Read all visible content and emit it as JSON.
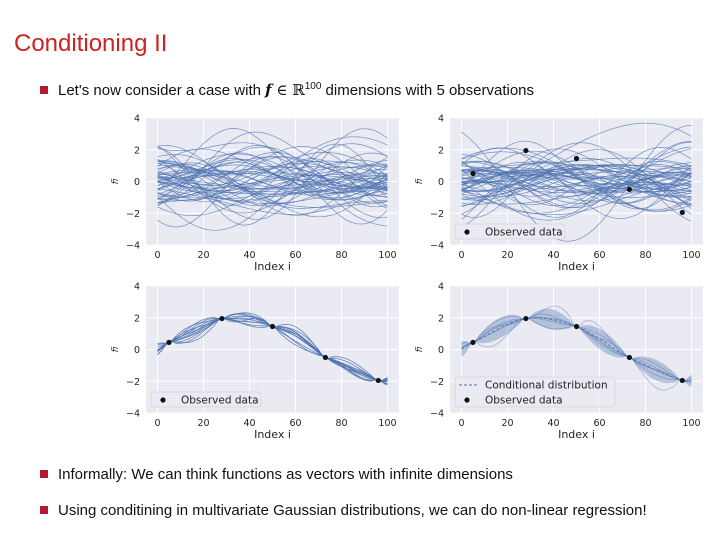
{
  "slide": {
    "title": "Conditioning II",
    "bullet1": {
      "pre": "Let's now consider a case with ",
      "f": "f",
      "in": " ∈ ℝ",
      "sup": "100",
      "post": " dimensions with 5 observations"
    },
    "bullet2": "Informally: We can think functions as vectors with infinite dimensions",
    "bullet3": "Using conditining in multivariate Gaussian distributions, we can do non-linear regression!"
  },
  "colors": {
    "title": "#cc2222",
    "bullet": "#b01c2e",
    "panel_bg": "#eaeaf2",
    "line": "#4c72b0",
    "point": "#111111"
  },
  "chart_data": [
    {
      "type": "line",
      "panel": "top-left",
      "title": "",
      "xlabel": "Index i",
      "ylabel": "f_i",
      "xlim": [
        -5,
        105
      ],
      "ylim": [
        -4,
        4
      ],
      "xticks": [
        0,
        20,
        40,
        60,
        80,
        100
      ],
      "yticks": [
        -4,
        -2,
        0,
        2,
        4
      ],
      "samples": 60,
      "observations": [],
      "legend": null,
      "grid": true
    },
    {
      "type": "scatter",
      "panel": "top-right",
      "title": "",
      "xlabel": "Index i",
      "ylabel": "f_i",
      "xlim": [
        -5,
        105
      ],
      "ylim": [
        -4,
        4
      ],
      "xticks": [
        0,
        20,
        40,
        60,
        80,
        100
      ],
      "yticks": [
        -4,
        -2,
        0,
        2,
        4
      ],
      "samples": 60,
      "observations": [
        {
          "x": 5,
          "y": 0.5
        },
        {
          "x": 28,
          "y": 1.95
        },
        {
          "x": 50,
          "y": 1.45
        },
        {
          "x": 73,
          "y": -0.5
        },
        {
          "x": 96,
          "y": -1.95
        }
      ],
      "legend": {
        "position": "lower-left",
        "entries": [
          "Observed data"
        ]
      },
      "grid": true
    },
    {
      "type": "line",
      "panel": "bottom-left",
      "title": "",
      "xlabel": "Index i",
      "ylabel": "f_i",
      "xlim": [
        -5,
        105
      ],
      "ylim": [
        -4,
        4
      ],
      "xticks": [
        0,
        20,
        40,
        60,
        80,
        100
      ],
      "yticks": [
        -4,
        -2,
        0,
        2,
        4
      ],
      "samples": 12,
      "observations": [
        {
          "x": 5,
          "y": 0.45
        },
        {
          "x": 28,
          "y": 1.95
        },
        {
          "x": 50,
          "y": 1.45
        },
        {
          "x": 73,
          "y": -0.5
        },
        {
          "x": 96,
          "y": -1.95
        }
      ],
      "legend": {
        "position": "lower-left",
        "entries": [
          "Observed data"
        ]
      },
      "grid": true
    },
    {
      "type": "area",
      "panel": "bottom-right",
      "title": "",
      "xlabel": "Index i",
      "ylabel": "f_i",
      "xlim": [
        -5,
        105
      ],
      "ylim": [
        -4,
        4
      ],
      "xticks": [
        0,
        20,
        40,
        60,
        80,
        100
      ],
      "yticks": [
        -4,
        -2,
        0,
        2,
        4
      ],
      "observations": [
        {
          "x": 5,
          "y": 0.45
        },
        {
          "x": 28,
          "y": 1.95
        },
        {
          "x": 50,
          "y": 1.45
        },
        {
          "x": 73,
          "y": -0.5
        },
        {
          "x": 96,
          "y": -1.95
        }
      ],
      "legend": {
        "position": "lower-left",
        "entries": [
          "Conditional distribution",
          "Observed data"
        ]
      },
      "grid": true
    }
  ]
}
